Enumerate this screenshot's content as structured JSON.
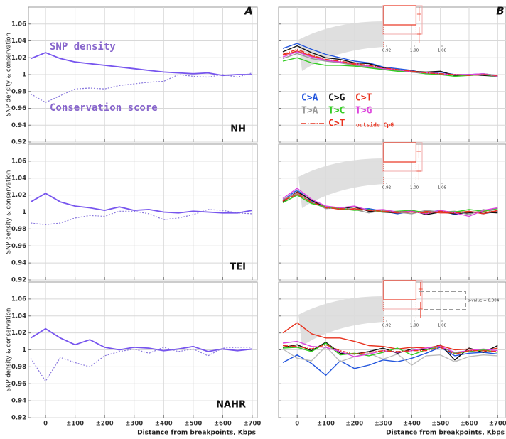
{
  "chart_data": [
    {
      "type": "line",
      "panel_label": "A",
      "title": "NH",
      "ylabel": "SNP density & conservation",
      "x": [
        -50,
        0,
        50,
        100,
        150,
        200,
        250,
        300,
        350,
        400,
        450,
        500,
        550,
        600,
        650,
        700
      ],
      "xlim": [
        -58,
        717
      ],
      "xticks": [
        0,
        100,
        200,
        300,
        400,
        500,
        600,
        700
      ],
      "ylim": [
        0.92,
        1.08
      ],
      "yticks": [
        0.92,
        0.94,
        0.96,
        0.98,
        1,
        1.02,
        1.04,
        1.06
      ],
      "grid": true,
      "series": [
        {
          "name": "SNP density",
          "color": "#7755ee",
          "style": "solid",
          "values": [
            1.019,
            1.026,
            1.019,
            1.015,
            1.013,
            1.011,
            1.009,
            1.007,
            1.005,
            1.003,
            1.002,
            1.001,
            1.002,
            0.999,
            1.0,
            1.0
          ]
        },
        {
          "name": "Conservation score",
          "color": "#8877dd",
          "style": "dotted",
          "values": [
            0.977,
            0.967,
            0.975,
            0.983,
            0.984,
            0.983,
            0.987,
            0.989,
            0.991,
            0.992,
            1.0,
            0.998,
            0.997,
            1.0,
            0.997,
            1.002
          ]
        }
      ]
    },
    {
      "type": "line",
      "panel_label": "B",
      "x": [
        -50,
        0,
        50,
        100,
        150,
        200,
        250,
        300,
        350,
        400,
        450,
        500,
        550,
        600,
        650,
        700
      ],
      "xlim": [
        -65,
        729
      ],
      "xticks": [
        0,
        100,
        200,
        300,
        400,
        500,
        600,
        700
      ],
      "ylim": [
        0.92,
        1.08
      ],
      "yticks": [
        0.92,
        0.94,
        0.96,
        0.98,
        1,
        1.02,
        1.04,
        1.06
      ],
      "grid": true,
      "inset": {
        "xlim": [
          0.92,
          1.08
        ],
        "xticks": [
          0.92,
          {
            "value": 1,
            "label": "1.00"
          },
          1.08
        ],
        "bar": 1.005,
        "marker": 1.014
      },
      "series": [
        {
          "name": "C>A",
          "color": "#2255dd",
          "style": "solid",
          "values": [
            1.031,
            1.037,
            1.03,
            1.024,
            1.02,
            1.016,
            1.014,
            1.009,
            1.007,
            1.005,
            1.001,
            1.003,
            1.0,
            1.0,
            1.001,
            0.999
          ]
        },
        {
          "name": "C>G",
          "color": "#111111",
          "style": "solid",
          "values": [
            1.027,
            1.034,
            1.026,
            1.02,
            1.018,
            1.014,
            1.013,
            1.008,
            1.005,
            1.004,
            1.003,
            1.004,
            0.999,
            1.0,
            0.999,
            0.998
          ]
        },
        {
          "name": "C>T",
          "color": "#e8321e",
          "style": "solid",
          "values": [
            1.023,
            1.028,
            1.022,
            1.017,
            1.015,
            1.012,
            1.01,
            1.007,
            1.005,
            1.004,
            1.002,
            1.001,
            1.0,
            0.999,
            1.0,
            0.999
          ]
        },
        {
          "name": "T>A",
          "color": "#999999",
          "style": "solid",
          "values": [
            1.019,
            1.025,
            1.019,
            1.016,
            1.014,
            1.011,
            1.009,
            1.006,
            1.005,
            1.003,
            1.002,
            1.0,
            1.0,
            0.999,
            1.001,
            0.999
          ]
        },
        {
          "name": "T>C",
          "color": "#33cc22",
          "style": "solid",
          "values": [
            1.016,
            1.02,
            1.014,
            1.011,
            1.011,
            1.01,
            1.008,
            1.006,
            1.004,
            1.003,
            1.001,
            1.0,
            0.998,
            0.999,
            1.0,
            0.998
          ]
        },
        {
          "name": "T>G",
          "color": "#dd44dd",
          "style": "solid",
          "values": [
            1.021,
            1.027,
            1.021,
            1.017,
            1.015,
            1.013,
            1.01,
            1.007,
            1.006,
            1.003,
            1.002,
            1.001,
            1.0,
            1.0,
            1.001,
            0.998
          ]
        },
        {
          "name": "C>T",
          "qualifier": "outside CpG",
          "color": "#e8321e",
          "style": "dashdot",
          "values": [
            1.024,
            1.03,
            1.023,
            1.018,
            1.016,
            1.013,
            1.011,
            1.008,
            1.006,
            1.004,
            1.002,
            1.001,
            1.0,
            0.999,
            1.0,
            0.999
          ]
        }
      ]
    },
    {
      "type": "line",
      "title": "TEI",
      "ylabel": "SNP density & conservation",
      "x": [
        -50,
        0,
        50,
        100,
        150,
        200,
        250,
        300,
        350,
        400,
        450,
        500,
        550,
        600,
        650,
        700
      ],
      "xlim": [
        -58,
        717
      ],
      "xticks": [
        0,
        100,
        200,
        300,
        400,
        500,
        600,
        700
      ],
      "ylim": [
        0.92,
        1.08
      ],
      "yticks": [
        0.92,
        0.94,
        0.96,
        0.98,
        1,
        1.02,
        1.04,
        1.06
      ],
      "grid": true,
      "series": [
        {
          "color": "#7755ee",
          "style": "solid",
          "values": [
            1.012,
            1.022,
            1.012,
            1.007,
            1.005,
            1.002,
            1.006,
            1.002,
            1.003,
            1.0,
            0.999,
            1.001,
            1.0,
            0.999,
            0.999,
            1.002
          ]
        },
        {
          "color": "#8877dd",
          "style": "dotted",
          "values": [
            0.987,
            0.985,
            0.987,
            0.993,
            0.996,
            0.995,
            1.001,
            1.001,
            0.998,
            0.991,
            0.993,
            0.997,
            1.003,
            1.002,
            0.999,
            0.998
          ]
        }
      ]
    },
    {
      "type": "line",
      "x": [
        -50,
        0,
        50,
        100,
        150,
        200,
        250,
        300,
        350,
        400,
        450,
        500,
        550,
        600,
        650,
        700
      ],
      "xlim": [
        -65,
        729
      ],
      "xticks": [
        0,
        100,
        200,
        300,
        400,
        500,
        600,
        700
      ],
      "ylim": [
        0.92,
        1.08
      ],
      "yticks": [
        0.92,
        0.94,
        0.96,
        0.98,
        1,
        1.02,
        1.04,
        1.06
      ],
      "grid": true,
      "inset": {
        "xlim": [
          0.92,
          1.08
        ],
        "xticks": [
          0.92,
          {
            "value": 1,
            "label": "1.00"
          },
          1.08
        ],
        "bar": 1.005,
        "marker": 1.013
      },
      "series": [
        {
          "color": "#2255dd",
          "style": "solid",
          "values": [
            1.014,
            1.026,
            1.013,
            1.006,
            1.005,
            1.003,
            1.004,
            1.001,
            0.998,
            1.001,
            0.999,
            1.002,
            0.997,
            1.001,
            0.998,
            1.001
          ]
        },
        {
          "color": "#111111",
          "style": "solid",
          "values": [
            1.012,
            1.024,
            1.014,
            1.005,
            1.004,
            1.006,
            1.001,
            1.0,
            0.999,
            1.002,
            0.997,
            1.0,
            0.998,
            0.999,
            1.0,
            0.999
          ]
        },
        {
          "color": "#e8321e",
          "style": "solid",
          "values": [
            1.013,
            1.023,
            1.011,
            1.006,
            1.003,
            1.004,
            1.002,
            1.001,
            0.999,
            1.0,
            1.001,
            0.999,
            0.999,
            1.001,
            0.998,
            1.002
          ]
        },
        {
          "color": "#999999",
          "style": "solid",
          "values": [
            1.015,
            1.022,
            1.012,
            1.004,
            1.005,
            1.003,
            0.999,
            1.002,
            1.0,
            0.998,
            1.002,
            1.0,
            1.001,
            0.997,
            1.003,
            1.0
          ]
        },
        {
          "color": "#33cc22",
          "style": "solid",
          "values": [
            1.011,
            1.02,
            1.01,
            1.006,
            1.004,
            1.002,
            1.003,
            1.0,
            1.001,
            1.002,
            0.999,
            1.001,
            1.0,
            1.003,
            1.001,
            1.004
          ]
        },
        {
          "color": "#dd44dd",
          "style": "solid",
          "values": [
            1.016,
            1.028,
            1.015,
            1.007,
            1.005,
            1.007,
            1.002,
            1.003,
            1.0,
            1.001,
            0.998,
            1.002,
            0.999,
            0.995,
            1.002,
            1.005
          ]
        },
        {
          "color": "#e8321e",
          "style": "dashdot",
          "values": [
            1.013,
            1.021,
            1.012,
            1.005,
            1.004,
            1.003,
            1.002,
            1.001,
            1.0,
            1.0,
            0.999,
            1.001,
            0.999,
            1.0,
            1.0,
            1.001
          ]
        }
      ]
    },
    {
      "type": "line",
      "title": "NAHR",
      "ylabel": "SNP density & conservation",
      "xlabel": "Distance from breakpoints, Kbps",
      "x": [
        -50,
        0,
        50,
        100,
        150,
        200,
        250,
        300,
        350,
        400,
        450,
        500,
        550,
        600,
        650,
        700
      ],
      "xlim": [
        -58,
        717
      ],
      "xticks": [
        0,
        {
          "value": 100,
          "label": "±100"
        },
        {
          "value": 200,
          "label": "±200"
        },
        {
          "value": 300,
          "label": "±300"
        },
        {
          "value": 400,
          "label": "±400"
        },
        {
          "value": 500,
          "label": "±500"
        },
        {
          "value": 600,
          "label": "±600"
        },
        {
          "value": 700,
          "label": "±700"
        }
      ],
      "ylim": [
        0.92,
        1.08
      ],
      "yticks": [
        0.92,
        0.94,
        0.96,
        0.98,
        1,
        1.02,
        1.04,
        1.06
      ],
      "grid": true,
      "series": [
        {
          "color": "#7755ee",
          "style": "solid",
          "values": [
            1.014,
            1.025,
            1.014,
            1.006,
            1.012,
            1.003,
            1.0,
            1.003,
            1.002,
            0.999,
            1.001,
            1.004,
            0.998,
            1.001,
            0.999,
            1.001
          ]
        },
        {
          "color": "#8877dd",
          "style": "dotted",
          "values": [
            0.99,
            0.963,
            0.991,
            0.985,
            0.98,
            0.993,
            0.998,
            1.001,
            0.996,
            1.003,
            0.998,
            1.001,
            0.993,
            1.002,
            1.003,
            1.003
          ]
        }
      ]
    },
    {
      "type": "line",
      "xlabel": "Distance from breakpoints, Kbps",
      "annotation": "p-value = 0.004",
      "x": [
        -50,
        0,
        50,
        100,
        150,
        200,
        250,
        300,
        350,
        400,
        450,
        500,
        550,
        600,
        650,
        700
      ],
      "xlim": [
        -65,
        729
      ],
      "xticks": [
        0,
        {
          "value": 100,
          "label": "±100"
        },
        {
          "value": 200,
          "label": "±200"
        },
        {
          "value": 300,
          "label": "±300"
        },
        {
          "value": 400,
          "label": "±400"
        },
        {
          "value": 500,
          "label": "±500"
        },
        {
          "value": 600,
          "label": "±600"
        },
        {
          "value": 700,
          "label": "±700"
        }
      ],
      "ylim": [
        0.92,
        1.08
      ],
      "yticks": [
        0.92,
        0.94,
        0.96,
        0.98,
        1,
        1.02,
        1.04,
        1.06
      ],
      "grid": true,
      "inset": {
        "xlim": [
          0.92,
          1.08
        ],
        "xticks": [
          0.92,
          {
            "value": 1,
            "label": "1.00"
          },
          1.08
        ],
        "bar": 1.005,
        "marker": 1.018
      },
      "series": [
        {
          "color": "#2255dd",
          "style": "solid",
          "values": [
            0.985,
            0.994,
            0.984,
            0.97,
            0.987,
            0.978,
            0.982,
            0.988,
            0.986,
            0.99,
            0.996,
            1.003,
            0.993,
            0.996,
            0.997,
            0.995
          ]
        },
        {
          "color": "#111111",
          "style": "solid",
          "values": [
            1.003,
            1.006,
            0.999,
            1.009,
            0.996,
            0.995,
            0.998,
            1.002,
            0.996,
            1.001,
            1.0,
            1.006,
            0.988,
            1.002,
            0.997,
            1.005
          ]
        },
        {
          "color": "#e8321e",
          "style": "solid",
          "values": [
            1.02,
            1.032,
            1.019,
            1.014,
            1.014,
            1.01,
            1.005,
            1.004,
            1.001,
            1.003,
            1.002,
            1.005,
            1.0,
            1.001,
            0.999,
            1.002
          ]
        },
        {
          "color": "#bbbbbb",
          "style": "solid",
          "values": [
            1.001,
            0.99,
            0.987,
            1.004,
            0.986,
            0.992,
            0.996,
            0.989,
            0.995,
            0.982,
            0.993,
            0.994,
            0.986,
            0.992,
            0.994,
            0.993
          ]
        },
        {
          "color": "#33cc22",
          "style": "solid",
          "values": [
            1.002,
            1.003,
            0.998,
            1.008,
            0.994,
            0.996,
            0.993,
            0.997,
            1.002,
            0.994,
            1.0,
            1.004,
            0.996,
            0.998,
            1.0,
            0.997
          ]
        },
        {
          "color": "#dd44dd",
          "style": "solid",
          "values": [
            1.008,
            1.01,
            1.004,
            1.003,
            0.998,
            0.992,
            0.995,
            0.999,
            0.997,
            0.999,
            1.002,
            1.004,
            0.997,
            0.999,
            1.001,
            0.999
          ]
        },
        {
          "color": "#e8321e",
          "style": "dashdot",
          "values": [
            1.005,
            1.004,
            1.001,
            1.006,
            0.999,
            0.995,
            0.997,
            0.999,
            0.998,
            0.999,
            0.999,
            1.003,
            0.995,
            0.999,
            0.999,
            0.998
          ]
        }
      ]
    }
  ]
}
